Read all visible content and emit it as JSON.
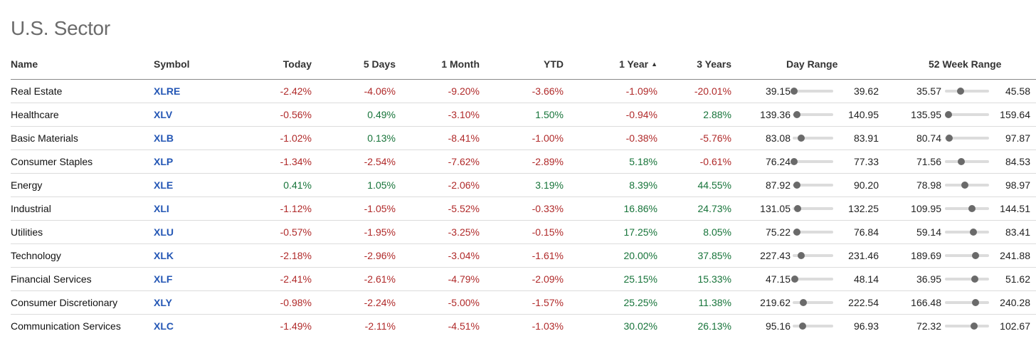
{
  "page": {
    "title": "U.S. Sector"
  },
  "columns": {
    "name": "Name",
    "symbol": "Symbol",
    "today": "Today",
    "five_days": "5 Days",
    "one_month": "1 Month",
    "ytd": "YTD",
    "one_year": "1 Year",
    "three_years": "3 Years",
    "day_range": "Day Range",
    "week52_range": "52 Week Range"
  },
  "sort": {
    "column": "one_year",
    "direction": "ascending",
    "icon": "triangle-up-icon"
  },
  "colors": {
    "negative": "#b02a2a",
    "positive": "#17743a",
    "symbol": "#2457b5",
    "title": "#6b6b6b"
  },
  "rows": [
    {
      "name": "Real Estate",
      "symbol": "XLRE",
      "today": "-2.42%",
      "five_days": "-4.06%",
      "one_month": "-9.20%",
      "ytd": "-3.66%",
      "one_year": "-1.09%",
      "three_years": "-20.01%",
      "day_low": "39.15",
      "day_high": "39.62",
      "day_pos": 0.03,
      "w52_low": "35.57",
      "w52_high": "45.58",
      "w52_pos": 0.36
    },
    {
      "name": "Healthcare",
      "symbol": "XLV",
      "today": "-0.56%",
      "five_days": "0.49%",
      "one_month": "-3.10%",
      "ytd": "1.50%",
      "one_year": "-0.94%",
      "three_years": "2.88%",
      "day_low": "139.36",
      "day_high": "140.95",
      "day_pos": 0.11,
      "w52_low": "135.95",
      "w52_high": "159.64",
      "w52_pos": 0.08
    },
    {
      "name": "Basic Materials",
      "symbol": "XLB",
      "today": "-1.02%",
      "five_days": "0.13%",
      "one_month": "-8.41%",
      "ytd": "-1.00%",
      "one_year": "-0.38%",
      "three_years": "-5.76%",
      "day_low": "83.08",
      "day_high": "83.91",
      "day_pos": 0.21,
      "w52_low": "80.74",
      "w52_high": "97.87",
      "w52_pos": 0.1
    },
    {
      "name": "Consumer Staples",
      "symbol": "XLP",
      "today": "-1.34%",
      "five_days": "-2.54%",
      "one_month": "-7.62%",
      "ytd": "-2.89%",
      "one_year": "5.18%",
      "three_years": "-0.61%",
      "day_low": "76.24",
      "day_high": "77.33",
      "day_pos": 0.03,
      "w52_low": "71.56",
      "w52_high": "84.53",
      "w52_pos": 0.37
    },
    {
      "name": "Energy",
      "symbol": "XLE",
      "today": "0.41%",
      "five_days": "1.05%",
      "one_month": "-2.06%",
      "ytd": "3.19%",
      "one_year": "8.39%",
      "three_years": "44.55%",
      "day_low": "87.92",
      "day_high": "90.20",
      "day_pos": 0.11,
      "w52_low": "78.98",
      "w52_high": "98.97",
      "w52_pos": 0.45
    },
    {
      "name": "Industrial",
      "symbol": "XLI",
      "today": "-1.12%",
      "five_days": "-1.05%",
      "one_month": "-5.52%",
      "ytd": "-0.33%",
      "one_year": "16.86%",
      "three_years": "24.73%",
      "day_low": "131.05",
      "day_high": "132.25",
      "day_pos": 0.13,
      "w52_low": "109.95",
      "w52_high": "144.51",
      "w52_pos": 0.61
    },
    {
      "name": "Utilities",
      "symbol": "XLU",
      "today": "-0.57%",
      "five_days": "-1.95%",
      "one_month": "-3.25%",
      "ytd": "-0.15%",
      "one_year": "17.25%",
      "three_years": "8.05%",
      "day_low": "75.22",
      "day_high": "76.84",
      "day_pos": 0.11,
      "w52_low": "59.14",
      "w52_high": "83.41",
      "w52_pos": 0.64
    },
    {
      "name": "Technology",
      "symbol": "XLK",
      "today": "-2.18%",
      "five_days": "-2.96%",
      "one_month": "-3.04%",
      "ytd": "-1.61%",
      "one_year": "20.00%",
      "three_years": "37.85%",
      "day_low": "227.43",
      "day_high": "231.46",
      "day_pos": 0.21,
      "w52_low": "189.69",
      "w52_high": "241.88",
      "w52_pos": 0.69
    },
    {
      "name": "Financial Services",
      "symbol": "XLF",
      "today": "-2.41%",
      "five_days": "-2.61%",
      "one_month": "-4.79%",
      "ytd": "-2.09%",
      "one_year": "25.15%",
      "three_years": "15.33%",
      "day_low": "47.15",
      "day_high": "48.14",
      "day_pos": 0.05,
      "w52_low": "36.95",
      "w52_high": "51.62",
      "w52_pos": 0.68
    },
    {
      "name": "Consumer Discretionary",
      "symbol": "XLY",
      "today": "-0.98%",
      "five_days": "-2.24%",
      "one_month": "-5.00%",
      "ytd": "-1.57%",
      "one_year": "25.25%",
      "three_years": "11.38%",
      "day_low": "219.62",
      "day_high": "222.54",
      "day_pos": 0.27,
      "w52_low": "166.48",
      "w52_high": "240.28",
      "w52_pos": 0.69
    },
    {
      "name": "Communication Services",
      "symbol": "XLC",
      "today": "-1.49%",
      "five_days": "-2.11%",
      "one_month": "-4.51%",
      "ytd": "-1.03%",
      "one_year": "30.02%",
      "three_years": "26.13%",
      "day_low": "95.16",
      "day_high": "96.93",
      "day_pos": 0.25,
      "w52_low": "72.32",
      "w52_high": "102.67",
      "w52_pos": 0.66
    }
  ]
}
